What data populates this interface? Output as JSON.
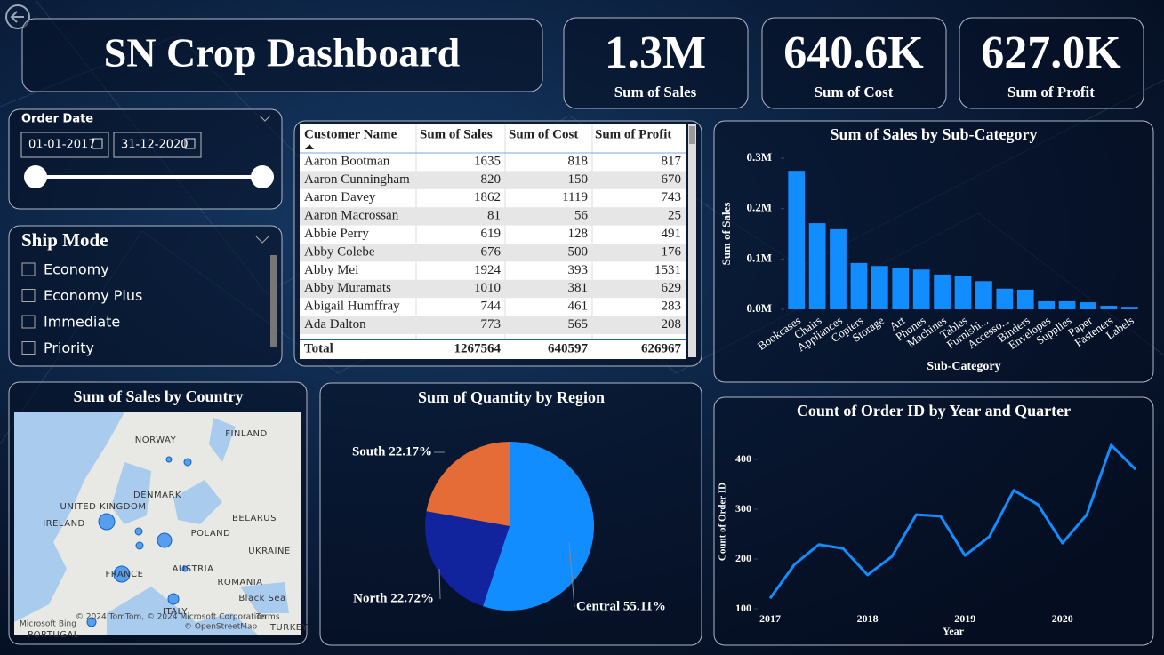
{
  "header": {
    "title": "SN Crop Dashboard"
  },
  "kpis": [
    {
      "value": "1.3M",
      "label": "Sum of Sales"
    },
    {
      "value": "640.6K",
      "label": "Sum of Cost"
    },
    {
      "value": "627.0K",
      "label": "Sum of Profit"
    }
  ],
  "date_filter": {
    "title": "Order Date",
    "start": "01-01-2017",
    "end": "31-12-2020"
  },
  "ship_mode": {
    "title": "Ship Mode",
    "options": [
      "Economy",
      "Economy Plus",
      "Immediate",
      "Priority"
    ]
  },
  "table": {
    "columns": [
      "Customer Name",
      "Sum of Sales",
      "Sum of Cost",
      "Sum of Profit"
    ],
    "rows": [
      [
        "Aaron Bootman",
        1635,
        818,
        817
      ],
      [
        "Aaron Cunningham",
        820,
        150,
        670
      ],
      [
        "Aaron Davey",
        1862,
        1119,
        743
      ],
      [
        "Aaron Macrossan",
        81,
        56,
        25
      ],
      [
        "Abbie Perry",
        619,
        128,
        491
      ],
      [
        "Abby Colebe",
        676,
        500,
        176
      ],
      [
        "Abby Mei",
        1924,
        393,
        1531
      ],
      [
        "Abby Muramats",
        1010,
        381,
        629
      ],
      [
        "Abigail Humffray",
        744,
        461,
        283
      ],
      [
        "Ada Dalton",
        773,
        565,
        208
      ]
    ],
    "total": [
      "Total",
      1267564,
      640597,
      626967
    ]
  },
  "map": {
    "title": "Sum of Sales by Country",
    "labels": [
      "NORWAY",
      "FINLAND",
      "UNITED KINGDOM",
      "DENMARK",
      "IRELAND",
      "BELARUS",
      "POLAND",
      "UKRAINE",
      "FRANCE",
      "AUSTRIA",
      "ROMANIA",
      "ITALY",
      "Black Sea",
      "PORTUGAL",
      "TURKEY"
    ],
    "attribution": [
      "Microsoft Bing",
      "© 2024 TomTom, © 2024 Microsoft Corporation",
      "Terms",
      "© OpenStreetMap"
    ]
  },
  "chart_data": [
    {
      "type": "bar",
      "title": "Sum of Sales by Sub-Category",
      "x_label": "Sub-Category",
      "y_label": "Sum of Sales",
      "categories": [
        "Bookcases",
        "Chairs",
        "Appliances",
        "Copiers",
        "Storage",
        "Art",
        "Phones",
        "Machines",
        "Tables",
        "Furnishi...",
        "Accesso...",
        "Binders",
        "Envelopes",
        "Supplies",
        "Paper",
        "Fasteners",
        "Labels"
      ],
      "values": [
        275000,
        171000,
        159000,
        92000,
        86000,
        83000,
        79000,
        69000,
        67000,
        56000,
        41000,
        39000,
        16000,
        16000,
        14000,
        7000,
        5000
      ],
      "color": "#118dff",
      "ylim": [
        0,
        300000
      ],
      "yticks": [
        {
          "value": 0,
          "label": "0.0M"
        },
        {
          "value": 100000,
          "label": "0.1M"
        },
        {
          "value": 200000,
          "label": "0.2M"
        },
        {
          "value": 300000,
          "label": "0.3M"
        }
      ]
    },
    {
      "type": "pie",
      "title": "Sum of Quantity by Region",
      "values": [
        55.11,
        22.72,
        22.17
      ],
      "value_labels": [
        "Central 55.11%",
        "North 22.72%",
        "South 22.17%"
      ],
      "colors": [
        "#118dff",
        "#12239e",
        "#e66c37"
      ]
    },
    {
      "type": "line",
      "title": "Count of Order ID by Year and Quarter",
      "x_label": "Year",
      "y_label": "Count of Order ID",
      "categories": [
        "2017",
        null,
        null,
        null,
        "2018",
        null,
        null,
        null,
        "2019",
        null,
        null,
        null,
        "2020",
        null,
        null,
        null
      ],
      "values": [
        121,
        189,
        229,
        221,
        168,
        205,
        289,
        286,
        207,
        245,
        338,
        309,
        232,
        289,
        429,
        380
      ],
      "color": "#118dff",
      "ylim": [
        90,
        440
      ],
      "yticks": [
        100,
        200,
        300,
        400
      ]
    }
  ]
}
